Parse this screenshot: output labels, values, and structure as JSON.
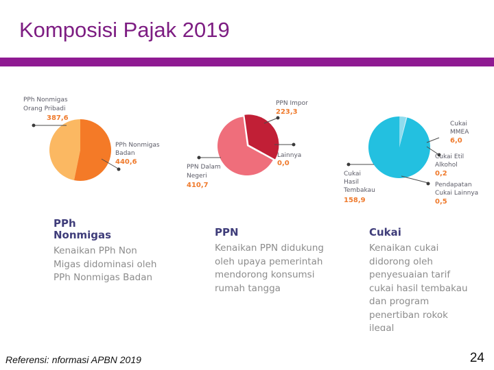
{
  "title": "Komposisi Pajak 2019",
  "colors": {
    "title": "#7d1d82",
    "bar": "#8f1a92",
    "value_text": "#ef7a2c",
    "panel_heading": "#3f3d7a",
    "panel_text": "#8c8c8c"
  },
  "chart_data": [
    {
      "type": "pie",
      "series": [
        {
          "label": "PPh Nonmigas Orang Pribadi",
          "value": 387.6,
          "value_label": "387,6",
          "color": "#fbb862"
        },
        {
          "label": "PPh Nonmigas Badan",
          "value": 440.6,
          "value_label": "440,6",
          "color": "#f47a27"
        }
      ]
    },
    {
      "type": "pie",
      "series": [
        {
          "label": "PPN Impor",
          "value": 223.3,
          "value_label": "223,3",
          "color": "#c11f36"
        },
        {
          "label": "Lainnya",
          "value": 0.0,
          "value_label": "0,0",
          "color": "#b51e30"
        },
        {
          "label": "PPN Dalam Negeri",
          "value": 410.7,
          "value_label": "410,7",
          "color": "#ef6e7b"
        }
      ]
    },
    {
      "type": "pie",
      "series": [
        {
          "label": "Cukai MMEA",
          "value": 6.0,
          "value_label": "6,0",
          "color": "#8fdcee"
        },
        {
          "label": "Cukai Etil Alkohol",
          "value": 0.2,
          "value_label": "0,2",
          "color": "#d6f1f8"
        },
        {
          "label": "Pendapatan Cukai Lainnya",
          "value": 0.5,
          "value_label": "0,5",
          "color": "#bfe9f5"
        },
        {
          "label": "Cukai Hasil Tembakau",
          "value": 158.9,
          "value_label": "158,9",
          "color": "#23c0e0"
        }
      ]
    }
  ],
  "panels": [
    {
      "heading": [
        "PPh",
        "Nonmigas"
      ],
      "lines": [
        "Kenaikan PPh Non",
        "Migas didominasi oleh",
        "PPh Nonmigas Badan"
      ]
    },
    {
      "heading": [
        "PPN"
      ],
      "lines": [
        "Kenaikan PPN didukung",
        "oleh upaya pemerintah",
        "mendorong konsumsi",
        "rumah tangga"
      ]
    },
    {
      "heading": [
        "Cukai"
      ],
      "lines": [
        "Kenaikan cukai",
        "didorong oleh",
        "penyesuaian tarif",
        "cukai hasil tembakau",
        "dan program",
        "penertiban rokok",
        "ilegal"
      ]
    }
  ],
  "footer": {
    "reference": "Referensi: nformasi APBN 2019",
    "page": "24"
  }
}
